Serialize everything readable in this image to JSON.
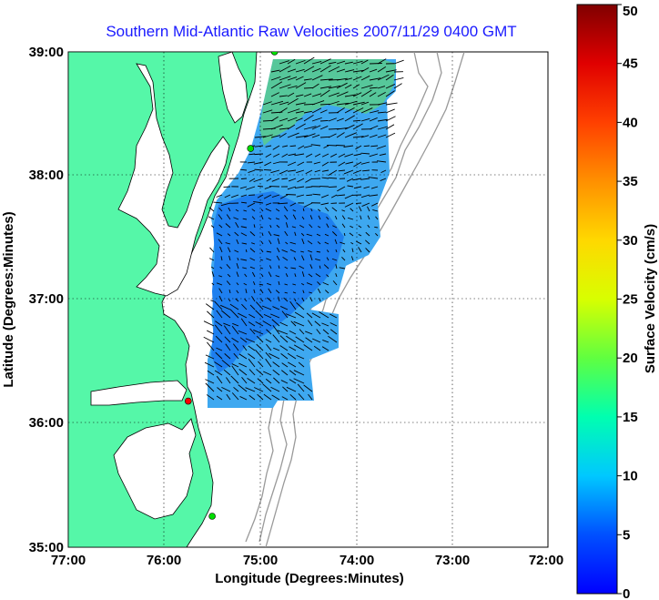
{
  "title": "Southern Mid-Atlantic Raw Velocities 2007/11/29 0400 GMT",
  "axes": {
    "xlabel": "Longitude (Degrees:Minutes)",
    "ylabel": "Latitude (Degrees:Minutes)",
    "xticks": [
      "77:00",
      "76:00",
      "75:00",
      "74:00",
      "73:00",
      "72:00"
    ],
    "yticks": [
      "39:00",
      "38:00",
      "37:00",
      "36:00",
      "35:00"
    ]
  },
  "colorbar": {
    "label": "Surface Velocity (cm/s)",
    "ticks": [
      "50",
      "45",
      "40",
      "35",
      "30",
      "25",
      "20",
      "15",
      "10",
      "5",
      "0"
    ],
    "min": 0,
    "max": 50
  },
  "colors": {
    "land": "#55f7a8",
    "coastline": "#000000",
    "bathymetry": "#999999",
    "velocity_slow": "#1e8cf2",
    "velocity_mid": "#3eb8f0",
    "station_green": "#00dd00",
    "station_red": "#ff0000",
    "title_color": "#1a1aff"
  },
  "map": {
    "lon_range": [
      -77,
      -72
    ],
    "lat_range": [
      35,
      39
    ],
    "grid": "dotted",
    "stations": [
      {
        "color": "green",
        "lon": -74.85,
        "lat": 39.0
      },
      {
        "color": "green",
        "lon": -75.1,
        "lat": 38.22
      },
      {
        "color": "red",
        "lon": -75.75,
        "lat": 36.18
      },
      {
        "color": "green",
        "lon": -75.5,
        "lat": 35.25
      }
    ]
  }
}
